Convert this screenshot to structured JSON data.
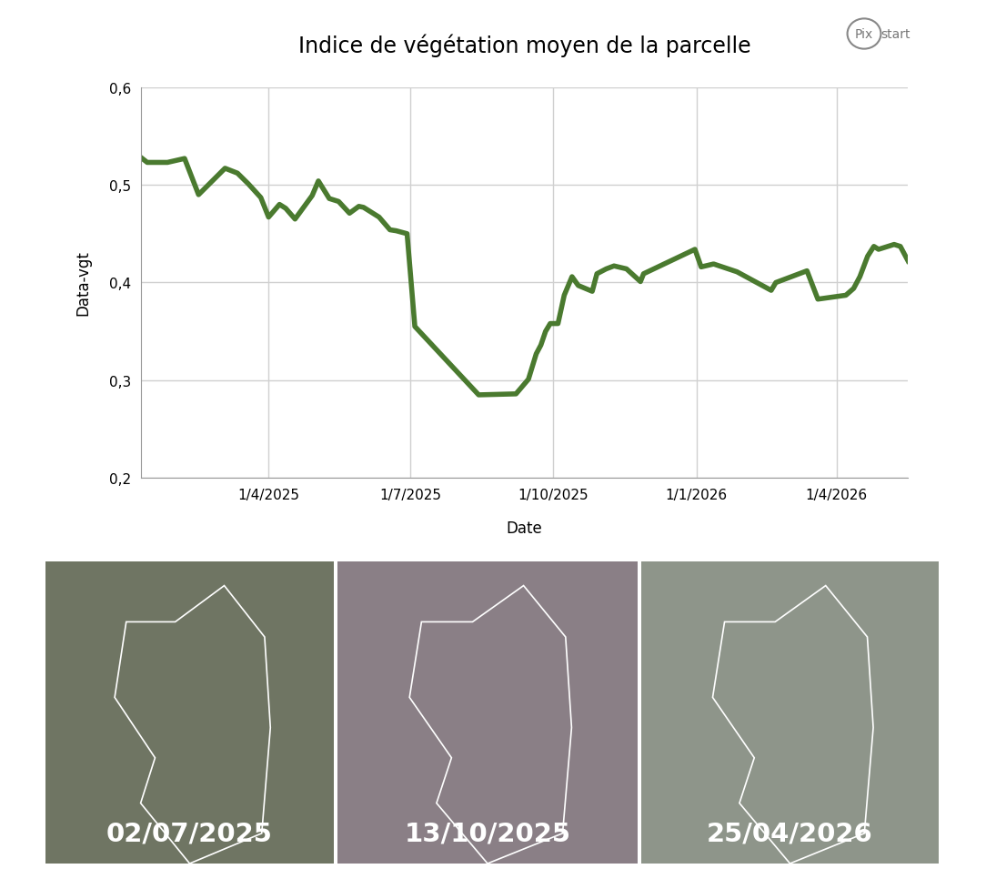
{
  "chart_data": {
    "type": "line",
    "title": "Indice de végétation moyen de la parcelle",
    "x_label": "Date",
    "y_label": "Data-vgt",
    "color": "#4a7a2f",
    "grid": true,
    "x": [
      "2025-01-09",
      "2025-01-13",
      "2025-01-26",
      "2025-02-06",
      "2025-02-15",
      "2025-03-04",
      "2025-03-12",
      "2025-03-19",
      "2025-03-27",
      "2025-04-01",
      "2025-04-08",
      "2025-04-12",
      "2025-04-18",
      "2025-04-29",
      "2025-05-03",
      "2025-05-10",
      "2025-05-16",
      "2025-05-23",
      "2025-05-29",
      "2025-06-01",
      "2025-06-11",
      "2025-06-18",
      "2025-06-22",
      "2025-06-29",
      "2025-07-04",
      "2025-08-14",
      "2025-09-07",
      "2025-09-15",
      "2025-09-20",
      "2025-09-23",
      "2025-09-26",
      "2025-09-29",
      "2025-10-04",
      "2025-10-08",
      "2025-10-13",
      "2025-10-17",
      "2025-10-26",
      "2025-10-29",
      "2025-11-04",
      "2025-11-09",
      "2025-11-17",
      "2025-11-26",
      "2025-11-28",
      "2025-12-31",
      "2026-01-04",
      "2026-01-12",
      "2026-01-27",
      "2026-02-18",
      "2026-02-21",
      "2026-03-13",
      "2026-03-20",
      "2026-04-07",
      "2026-04-12",
      "2026-04-16",
      "2026-04-21",
      "2026-04-25",
      "2026-04-28",
      "2026-05-08",
      "2026-05-12",
      "2026-05-17"
    ],
    "values": [
      0.528,
      0.523,
      0.523,
      0.527,
      0.49,
      0.517,
      0.512,
      0.501,
      0.487,
      0.467,
      0.48,
      0.476,
      0.465,
      0.489,
      0.504,
      0.486,
      0.483,
      0.471,
      0.478,
      0.477,
      0.467,
      0.454,
      0.453,
      0.45,
      0.355,
      0.285,
      0.286,
      0.301,
      0.327,
      0.336,
      0.35,
      0.358,
      0.358,
      0.387,
      0.406,
      0.397,
      0.391,
      0.409,
      0.414,
      0.417,
      0.414,
      0.401,
      0.409,
      0.434,
      0.416,
      0.419,
      0.411,
      0.392,
      0.4,
      0.412,
      0.383,
      0.387,
      0.394,
      0.406,
      0.427,
      0.437,
      0.434,
      0.439,
      0.437,
      0.422
    ],
    "xlim": [
      "2025-01-09",
      "2026-05-17"
    ],
    "xticks": [
      {
        "value": "2025-04-01",
        "label": "1/4/2025"
      },
      {
        "value": "2025-07-01",
        "label": "1/7/2025"
      },
      {
        "value": "2025-10-01",
        "label": "1/10/2025"
      },
      {
        "value": "2026-01-01",
        "label": "1/1/2026"
      },
      {
        "value": "2026-04-01",
        "label": "1/4/2026"
      }
    ],
    "ylim": [
      0.2,
      0.6
    ],
    "yticks": [
      {
        "value": 0.2,
        "label": "0,2"
      },
      {
        "value": 0.3,
        "label": "0,3"
      },
      {
        "value": 0.4,
        "label": "0,4"
      },
      {
        "value": 0.5,
        "label": "0,5"
      },
      {
        "value": 0.6,
        "label": "0,6"
      }
    ]
  },
  "images": [
    {
      "label": "02/07/2025"
    },
    {
      "label": "13/10/2025"
    },
    {
      "label": "25/04/2026"
    }
  ],
  "logo": [
    "Pix",
    "start"
  ]
}
